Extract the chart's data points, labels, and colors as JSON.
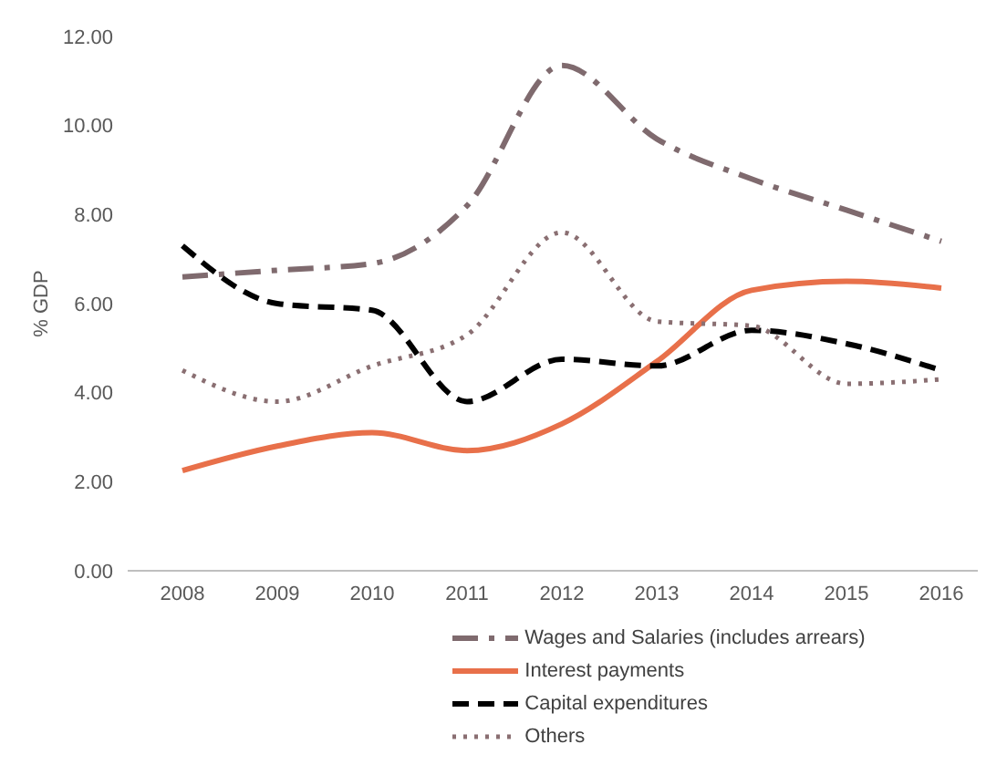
{
  "chart_data": {
    "type": "line",
    "ylabel": "% GDP",
    "categories": [
      "2008",
      "2009",
      "2010",
      "2011",
      "2012",
      "2013",
      "2014",
      "2015",
      "2016"
    ],
    "ylim": [
      0,
      12
    ],
    "yticks": [
      {
        "value": 0,
        "label": "0.00"
      },
      {
        "value": 2,
        "label": "2.00"
      },
      {
        "value": 4,
        "label": "4.00"
      },
      {
        "value": 6,
        "label": "6.00"
      },
      {
        "value": 8,
        "label": "8.00"
      },
      {
        "value": 10,
        "label": "10.00"
      },
      {
        "value": 12,
        "label": "12.00"
      }
    ],
    "grid": false,
    "legend": "bottom",
    "marker": "none",
    "series": [
      {
        "name": "Wages and Salaries (includes arrears)",
        "color": "#7f6a6e",
        "line_style": "dashdot",
        "values": [
          6.6,
          6.75,
          6.9,
          8.2,
          11.35,
          9.7,
          8.8,
          8.1,
          7.4
        ]
      },
      {
        "name": "Interest payments",
        "color": "#e8704a",
        "line_style": "solid",
        "values": [
          2.25,
          2.8,
          3.1,
          2.7,
          3.3,
          4.7,
          6.3,
          6.5,
          6.35
        ]
      },
      {
        "name": "Capital expenditures",
        "color": "#000000",
        "line_style": "dashed",
        "values": [
          7.3,
          6.0,
          5.85,
          3.8,
          4.75,
          4.6,
          5.4,
          5.1,
          4.5
        ]
      },
      {
        "name": "Others",
        "color": "#8a6f72",
        "line_style": "dotted",
        "values": [
          4.5,
          3.8,
          4.6,
          5.3,
          7.6,
          5.6,
          5.5,
          4.2,
          4.3
        ]
      }
    ]
  }
}
